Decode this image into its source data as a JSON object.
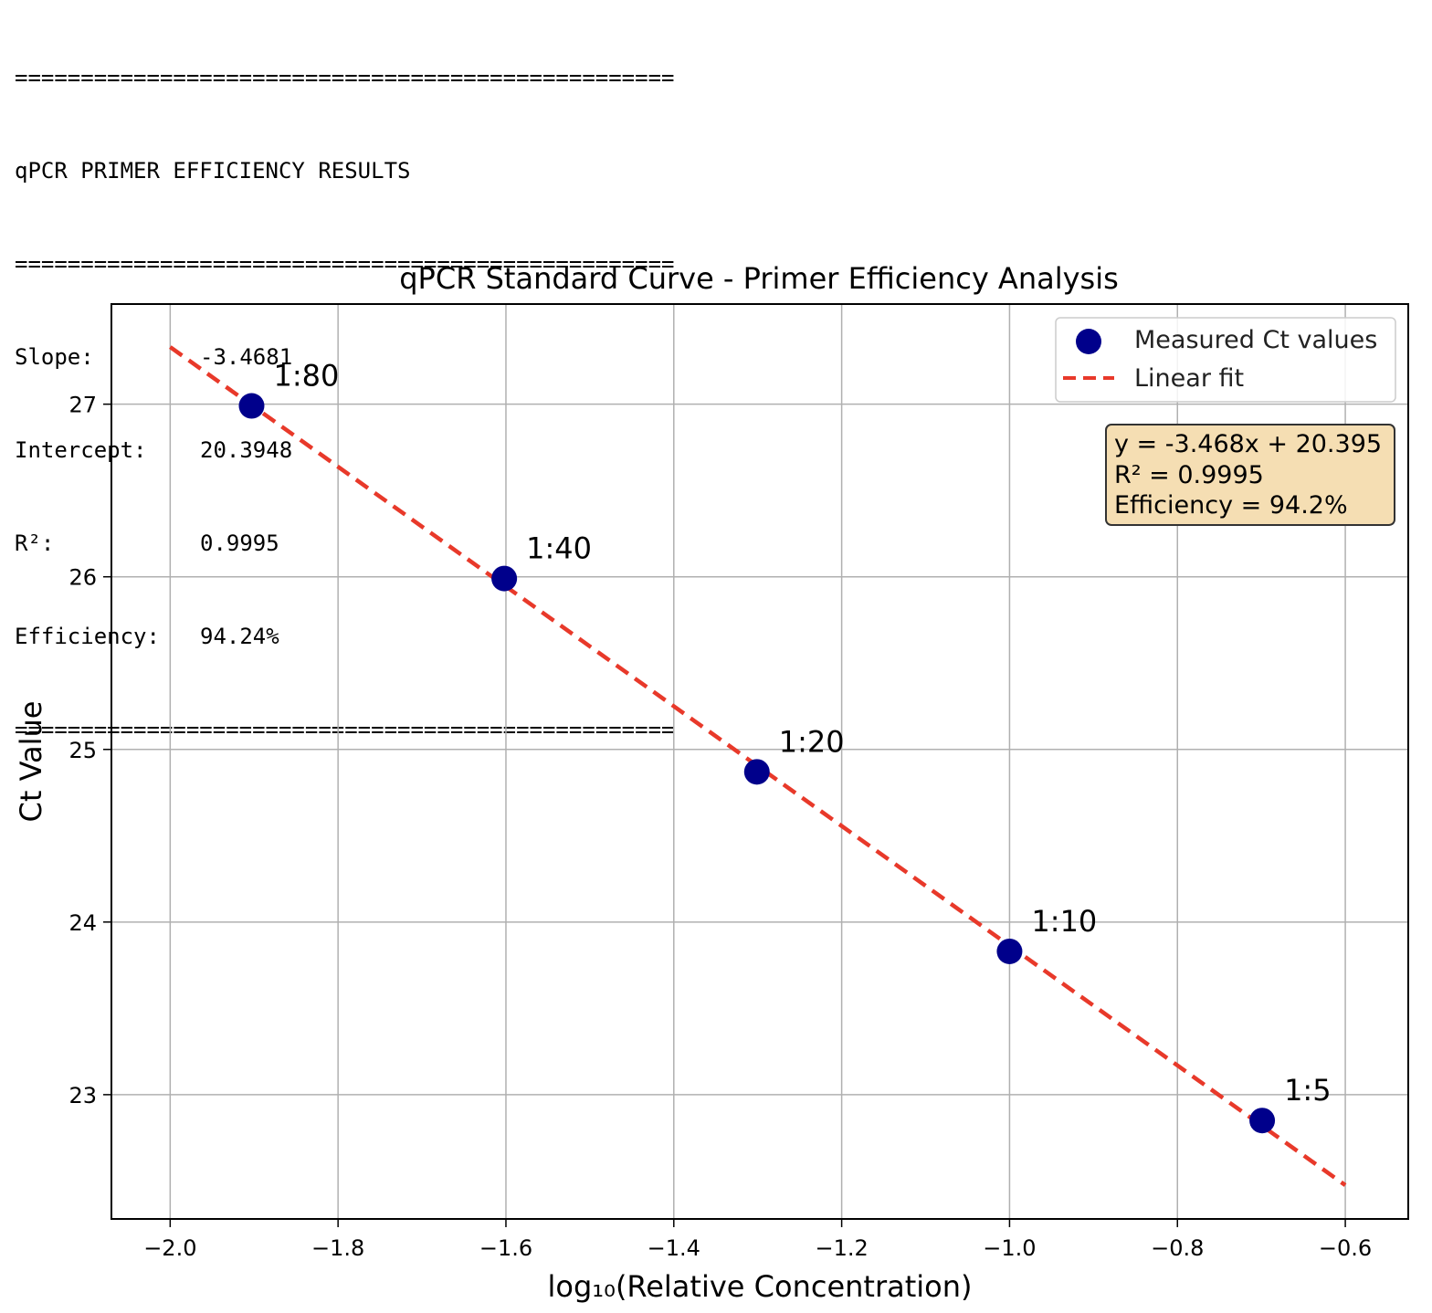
{
  "console": {
    "separator": "==================================================",
    "heading": "qPCR PRIMER EFFICIENCY RESULTS",
    "rows": [
      {
        "label": "Slope:",
        "value": "-3.4681"
      },
      {
        "label": "Intercept:",
        "value": "20.3948"
      },
      {
        "label": "R²:",
        "value": "0.9995"
      },
      {
        "label": "Efficiency:",
        "value": "94.24%"
      }
    ]
  },
  "chart_data": {
    "type": "scatter",
    "title": "qPCR Standard Curve - Primer Efficiency Analysis",
    "xlabel": "log₁₀(Relative Concentration)",
    "ylabel": "Ct Value",
    "xlim": [
      -2.07,
      -0.525
    ],
    "ylim": [
      22.28,
      27.58
    ],
    "xticks": [
      -2.0,
      -1.8,
      -1.6,
      -1.4,
      -1.2,
      -1.0,
      -0.8,
      -0.6
    ],
    "xtick_labels": [
      "−2.0",
      "−1.8",
      "−1.6",
      "−1.4",
      "−1.2",
      "−1.0",
      "−0.8",
      "−0.6"
    ],
    "yticks": [
      23,
      24,
      25,
      26,
      27
    ],
    "ytick_labels": [
      "23",
      "24",
      "25",
      "26",
      "27"
    ],
    "grid": true,
    "legend_position": "top-right",
    "series": [
      {
        "name": "Measured Ct values",
        "kind": "scatter",
        "color": "#00008b",
        "x": [
          -1.903,
          -1.602,
          -1.301,
          -1.0,
          -0.699
        ],
        "y": [
          26.99,
          25.99,
          24.87,
          23.83,
          22.85
        ],
        "labels": [
          "1:80",
          "1:40",
          "1:20",
          "1:10",
          "1:5"
        ]
      },
      {
        "name": "Linear fit",
        "kind": "line",
        "style": "dashed",
        "color": "#e8392a",
        "slope": -3.4681,
        "intercept": 20.3948,
        "x_range": [
          -2.0,
          -0.6
        ]
      }
    ],
    "annotation_box": {
      "lines": [
        "y = -3.468x + 20.395",
        "R² = 0.9995",
        "Efficiency = 94.2%"
      ],
      "background": "#f5deb3",
      "border": "#333333"
    }
  }
}
